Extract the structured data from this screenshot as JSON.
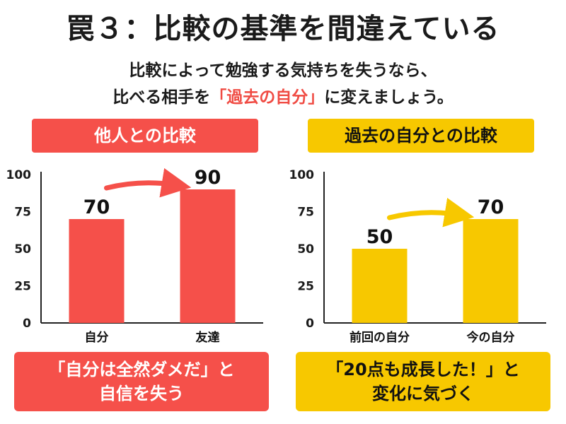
{
  "title": "罠３：比較の基準を間違えている",
  "subtitle": {
    "line1": "比較によって勉強する気持ちを失うなら、",
    "line2_pre": "比べる相手を",
    "line2_highlight": "「過去の自分」",
    "line2_post": "に変えましょう。"
  },
  "colors": {
    "red": "#f5504a",
    "yellow": "#f7c800"
  },
  "left_panel": {
    "label": "他人との比較",
    "caption_line1": "「自分は全然ダメだ」と",
    "caption_line2": "自信を失う"
  },
  "right_panel": {
    "label": "過去の自分との比較",
    "caption_line1": "「20点も成長した！」と",
    "caption_line2": "変化に気づく"
  },
  "chart_data": [
    {
      "type": "bar",
      "categories": [
        "自分",
        "友達"
      ],
      "values": [
        70,
        90
      ],
      "ylim": [
        0,
        100
      ],
      "yticks": [
        0,
        25,
        50,
        75,
        100
      ],
      "color": "#f5504a",
      "annotation": "arrow from 自分 to 友達"
    },
    {
      "type": "bar",
      "categories": [
        "前回の自分",
        "今の自分"
      ],
      "values": [
        50,
        70
      ],
      "ylim": [
        0,
        100
      ],
      "yticks": [
        0,
        25,
        50,
        75,
        100
      ],
      "color": "#f7c800",
      "annotation": "arrow from 前回の自分 to 今の自分"
    }
  ]
}
